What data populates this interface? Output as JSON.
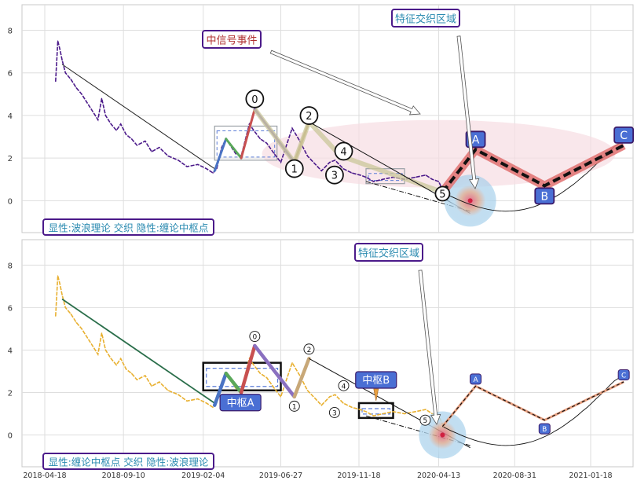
{
  "chart_data": [
    {
      "type": "line",
      "panel": "top",
      "ylim": [
        -1.5,
        9.2
      ],
      "yticks": [
        0,
        2,
        4,
        6,
        8
      ],
      "grid": true,
      "series": [
        {
          "role": "price",
          "color": "#4b1a8a",
          "points": [
            [
              "2018-05-08",
              5.6
            ],
            [
              "2018-05-12",
              7.5
            ],
            [
              "2018-05-16",
              7.1
            ],
            [
              "2018-05-20",
              6.6
            ],
            [
              "2018-05-26",
              6.0
            ],
            [
              "2018-06-05",
              5.7
            ],
            [
              "2018-06-15",
              5.3
            ],
            [
              "2018-06-25",
              5.0
            ],
            [
              "2018-07-05",
              4.6
            ],
            [
              "2018-07-15",
              4.2
            ],
            [
              "2018-07-25",
              3.8
            ],
            [
              "2018-08-01",
              4.8
            ],
            [
              "2018-08-08",
              4.0
            ],
            [
              "2018-08-18",
              3.6
            ],
            [
              "2018-08-28",
              3.3
            ],
            [
              "2018-09-05",
              3.6
            ],
            [
              "2018-09-15",
              3.1
            ],
            [
              "2018-09-25",
              2.9
            ],
            [
              "2018-10-05",
              2.6
            ],
            [
              "2018-10-20",
              2.8
            ],
            [
              "2018-11-01",
              2.3
            ],
            [
              "2018-11-15",
              2.5
            ],
            [
              "2018-12-01",
              2.1
            ],
            [
              "2018-12-20",
              1.9
            ],
            [
              "2019-01-05",
              1.6
            ],
            [
              "2019-01-25",
              1.7
            ],
            [
              "2019-02-10",
              1.5
            ],
            [
              "2019-02-22",
              1.3
            ],
            [
              "2019-03-01",
              1.5
            ],
            [
              "2019-03-10",
              2.5
            ],
            [
              "2019-03-18",
              2.9
            ],
            [
              "2019-04-05",
              2.2
            ],
            [
              "2019-04-15",
              2.1
            ],
            [
              "2019-04-30",
              3.6
            ],
            [
              "2019-05-08",
              3.3
            ],
            [
              "2019-05-20",
              2.9
            ],
            [
              "2019-06-01",
              2.7
            ],
            [
              "2019-06-15",
              2.2
            ],
            [
              "2019-06-27",
              1.8
            ],
            [
              "2019-07-10",
              2.8
            ],
            [
              "2019-07-18",
              3.4
            ],
            [
              "2019-08-01",
              2.8
            ],
            [
              "2019-08-15",
              2.1
            ],
            [
              "2019-08-30",
              1.7
            ],
            [
              "2019-09-10",
              1.4
            ],
            [
              "2019-09-25",
              1.8
            ],
            [
              "2019-10-05",
              1.9
            ],
            [
              "2019-10-20",
              1.5
            ],
            [
              "2019-11-05",
              1.3
            ],
            [
              "2019-11-20",
              1.2
            ],
            [
              "2019-12-01",
              1.1
            ],
            [
              "2019-12-15",
              0.9
            ],
            [
              "2020-01-01",
              1.0
            ],
            [
              "2020-01-20",
              1.1
            ],
            [
              "2020-02-10",
              1.0
            ],
            [
              "2020-03-01",
              1.1
            ],
            [
              "2020-03-20",
              1.2
            ],
            [
              "2020-04-01",
              1.0
            ],
            [
              "2020-04-13",
              0.9
            ],
            [
              "2020-04-20",
              0.5
            ]
          ]
        }
      ],
      "trend_line": [
        [
          "2018-05-20",
          6.4
        ],
        [
          "2019-02-25",
          1.5
        ]
      ],
      "chan_boxes": [
        {
          "x0": "2019-02-25",
          "x1": "2019-06-20",
          "y0": 1.9,
          "y1": 3.5
        },
        {
          "x0": "2019-12-01",
          "x1": "2020-02-10",
          "y0": 0.8,
          "y1": 1.5
        }
      ],
      "wave_points": [
        {
          "label": "0",
          "x": "2019-05-10",
          "y": 4.3
        },
        {
          "label": "1",
          "x": "2019-07-22",
          "y": 1.8
        },
        {
          "label": "2",
          "x": "2019-08-18",
          "y": 3.7
        },
        {
          "label": "3",
          "x": "2019-10-04",
          "y": 1.5
        },
        {
          "label": "4",
          "x": "2019-10-15",
          "y": 2.1
        },
        {
          "label": "5",
          "x": "2020-04-20",
          "y": 0.4
        }
      ],
      "forecast_points": [
        {
          "label": "A",
          "x": "2020-06-20",
          "y": 2.4
        },
        {
          "label": "B",
          "x": "2020-10-25",
          "y": 0.7
        },
        {
          "label": "C",
          "x": "2021-03-20",
          "y": 2.6
        }
      ],
      "annotations": [
        {
          "text": "中信号事件",
          "anchor": "mid-signal"
        },
        {
          "text": "特征交织区域",
          "anchor": "feature"
        },
        {
          "text": "显性:波浪理论 交织 隐性:缠论中枢点",
          "anchor": "caption"
        }
      ]
    },
    {
      "type": "line",
      "panel": "bottom",
      "ylim": [
        -1.5,
        9.2
      ],
      "yticks": [
        0,
        2,
        4,
        6,
        8
      ],
      "xticks": [
        "2018-04-18",
        "2018-09-10",
        "2019-02-04",
        "2019-06-27",
        "2019-11-18",
        "2020-04-13",
        "2020-08-31",
        "2021-01-18"
      ],
      "grid": true,
      "series": [
        {
          "role": "price",
          "color": "#e8b030",
          "points": [
            [
              "2018-05-08",
              5.6
            ],
            [
              "2018-05-12",
              7.5
            ],
            [
              "2018-05-16",
              7.1
            ],
            [
              "2018-05-20",
              6.6
            ],
            [
              "2018-05-26",
              6.0
            ],
            [
              "2018-06-05",
              5.7
            ],
            [
              "2018-06-15",
              5.3
            ],
            [
              "2018-06-25",
              5.0
            ],
            [
              "2018-07-05",
              4.6
            ],
            [
              "2018-07-15",
              4.2
            ],
            [
              "2018-07-25",
              3.8
            ],
            [
              "2018-08-01",
              4.8
            ],
            [
              "2018-08-08",
              4.0
            ],
            [
              "2018-08-18",
              3.6
            ],
            [
              "2018-08-28",
              3.3
            ],
            [
              "2018-09-05",
              3.6
            ],
            [
              "2018-09-15",
              3.1
            ],
            [
              "2018-09-25",
              2.9
            ],
            [
              "2018-10-05",
              2.6
            ],
            [
              "2018-10-20",
              2.8
            ],
            [
              "2018-11-01",
              2.3
            ],
            [
              "2018-11-15",
              2.5
            ],
            [
              "2018-12-01",
              2.1
            ],
            [
              "2018-12-20",
              1.9
            ],
            [
              "2019-01-05",
              1.6
            ],
            [
              "2019-01-25",
              1.7
            ],
            [
              "2019-02-10",
              1.5
            ],
            [
              "2019-02-22",
              1.3
            ],
            [
              "2019-03-01",
              1.5
            ],
            [
              "2019-03-10",
              2.5
            ],
            [
              "2019-03-18",
              2.9
            ],
            [
              "2019-04-05",
              2.2
            ],
            [
              "2019-04-15",
              2.1
            ],
            [
              "2019-04-30",
              3.6
            ],
            [
              "2019-05-08",
              3.3
            ],
            [
              "2019-05-20",
              2.9
            ],
            [
              "2019-06-01",
              2.7
            ],
            [
              "2019-06-15",
              2.2
            ],
            [
              "2019-06-27",
              1.8
            ],
            [
              "2019-07-10",
              2.8
            ],
            [
              "2019-07-18",
              3.4
            ],
            [
              "2019-08-01",
              2.8
            ],
            [
              "2019-08-15",
              2.1
            ],
            [
              "2019-08-30",
              1.7
            ],
            [
              "2019-09-10",
              1.4
            ],
            [
              "2019-09-25",
              1.8
            ],
            [
              "2019-10-05",
              1.9
            ],
            [
              "2019-10-20",
              1.5
            ],
            [
              "2019-11-05",
              1.3
            ],
            [
              "2019-11-20",
              1.2
            ],
            [
              "2019-12-01",
              1.1
            ],
            [
              "2019-12-15",
              0.9
            ],
            [
              "2020-01-01",
              1.0
            ],
            [
              "2020-01-20",
              1.1
            ],
            [
              "2020-02-10",
              1.0
            ],
            [
              "2020-03-01",
              1.1
            ],
            [
              "2020-03-20",
              1.2
            ],
            [
              "2020-04-01",
              1.0
            ],
            [
              "2020-04-13",
              0.9
            ],
            [
              "2020-04-20",
              0.5
            ]
          ]
        }
      ],
      "trend_line": [
        [
          "2018-05-20",
          6.4
        ],
        [
          "2019-02-25",
          1.5
        ]
      ],
      "chan_boxes": [
        {
          "label": "中枢A",
          "x0": "2019-02-04",
          "x1": "2019-06-27",
          "y0": 2.1,
          "y1": 3.4
        },
        {
          "label": "中枢B",
          "x0": "2019-11-18",
          "x1": "2020-01-20",
          "y0": 0.8,
          "y1": 1.5
        }
      ],
      "wave_points": [
        {
          "label": "0",
          "x": "2019-05-10",
          "y": 4.2
        },
        {
          "label": "1",
          "x": "2019-07-22",
          "y": 1.8
        },
        {
          "label": "2",
          "x": "2019-08-18",
          "y": 3.6
        },
        {
          "label": "3",
          "x": "2019-10-04",
          "y": 1.5
        },
        {
          "label": "4",
          "x": "2019-10-15",
          "y": 2.1
        },
        {
          "label": "5",
          "x": "2020-04-20",
          "y": 0.4
        }
      ],
      "forecast_points": [
        {
          "label": "A",
          "x": "2020-06-20",
          "y": 2.3
        },
        {
          "label": "B",
          "x": "2020-10-25",
          "y": 0.7
        },
        {
          "label": "C",
          "x": "2021-03-20",
          "y": 2.5
        }
      ],
      "annotations": [
        {
          "text": "特征交织区域",
          "anchor": "feature"
        },
        {
          "text": "显性:缠论中枢点 交织 隐性:波浪理论",
          "anchor": "caption"
        }
      ]
    }
  ]
}
